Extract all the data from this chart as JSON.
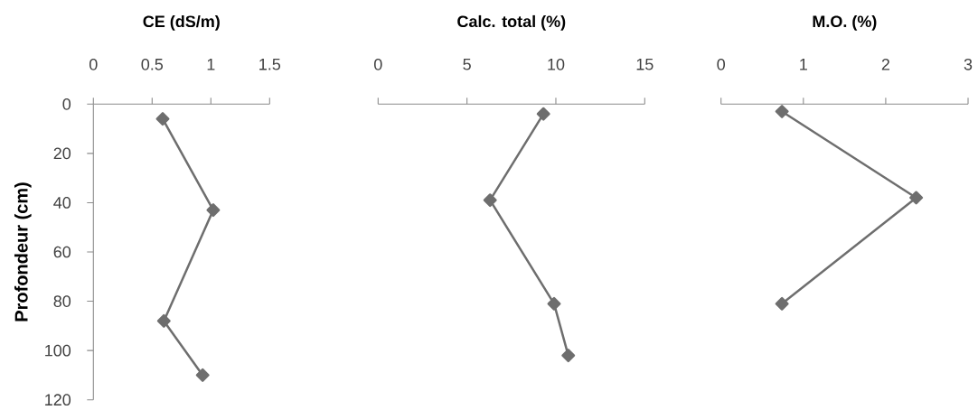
{
  "chart_data": [
    {
      "type": "line",
      "xlabel": "CE (dS/m)",
      "ylabel": "Profondeur (cm)",
      "x": [
        0.59,
        1.02,
        0.6,
        0.93
      ],
      "values": [
        6,
        43,
        88,
        110
      ],
      "color": "#6e6e6e",
      "marker": "diamond",
      "line_style": "solid",
      "xlim": [
        0,
        1.5
      ],
      "xticks": [
        0,
        0.5,
        1,
        1.5
      ],
      "ylim": [
        120,
        0
      ],
      "yticks": [
        0,
        20,
        40,
        60,
        80,
        100,
        120
      ]
    },
    {
      "type": "line",
      "xlabel": "Calc. total (%)",
      "x": [
        9.3,
        6.3,
        9.9,
        10.7
      ],
      "values": [
        4,
        39,
        81,
        102
      ],
      "color": "#6e6e6e",
      "marker": "diamond",
      "line_style": "solid",
      "xlim": [
        0,
        15
      ],
      "xticks": [
        0,
        5,
        10,
        15
      ],
      "ylim": [
        120,
        0
      ],
      "tick_labels": "x"
    },
    {
      "type": "line",
      "xlabel": "M.O. (%)",
      "x": [
        0.74,
        2.37,
        0.74
      ],
      "values": [
        3,
        38,
        81
      ],
      "color": "#6e6e6e",
      "marker": "diamond",
      "line_style": "solid",
      "xlim": [
        0,
        3
      ],
      "xticks": [
        0,
        1,
        2,
        3
      ],
      "ylim": [
        120,
        0
      ],
      "tick_labels": "x"
    }
  ]
}
